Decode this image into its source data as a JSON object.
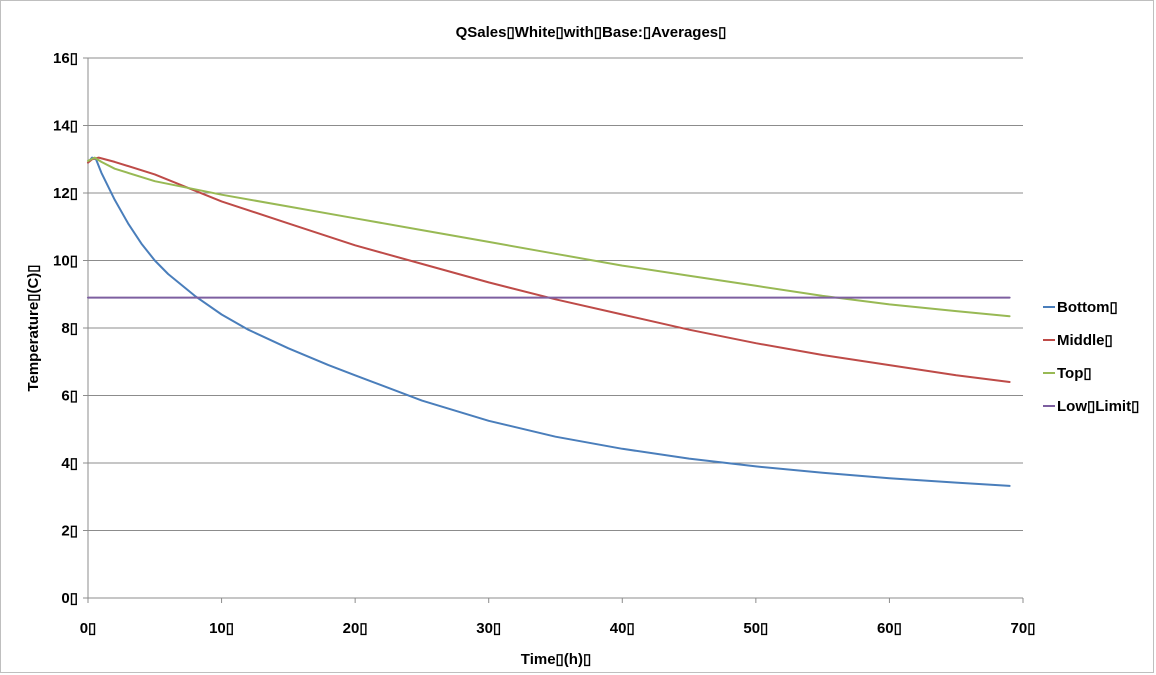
{
  "chart_data": {
    "type": "line",
    "title": "QSales▯White▯with▯Base:▯Averages▯",
    "xlabel": "Time▯(h)▯",
    "ylabel": "Temperature▯(C)▯",
    "xlim": [
      0,
      70
    ],
    "ylim": [
      0,
      16
    ],
    "x_ticks": [
      0,
      10,
      20,
      30,
      40,
      50,
      60,
      70
    ],
    "x_tick_labels": [
      "0▯",
      "10▯",
      "20▯",
      "30▯",
      "40▯",
      "50▯",
      "60▯",
      "70▯"
    ],
    "y_ticks": [
      0,
      2,
      4,
      6,
      8,
      10,
      12,
      14,
      16
    ],
    "y_tick_labels": [
      "0▯",
      "2▯",
      "4▯",
      "6▯",
      "8▯",
      "10▯",
      "12▯",
      "14▯",
      "16▯"
    ],
    "grid": "horizontal",
    "legend_position": "right",
    "series": [
      {
        "name": "Bottom▯",
        "color": "#4a7ebb",
        "points": [
          [
            0,
            12.9
          ],
          [
            0.3,
            13.05
          ],
          [
            0.6,
            13.0
          ],
          [
            1,
            12.6
          ],
          [
            2,
            11.8
          ],
          [
            3,
            11.1
          ],
          [
            4,
            10.5
          ],
          [
            5,
            10.0
          ],
          [
            6,
            9.6
          ],
          [
            8,
            8.95
          ],
          [
            10,
            8.4
          ],
          [
            12,
            7.95
          ],
          [
            15,
            7.4
          ],
          [
            18,
            6.9
          ],
          [
            20,
            6.6
          ],
          [
            25,
            5.85
          ],
          [
            30,
            5.25
          ],
          [
            35,
            4.78
          ],
          [
            40,
            4.42
          ],
          [
            45,
            4.13
          ],
          [
            50,
            3.9
          ],
          [
            55,
            3.71
          ],
          [
            60,
            3.55
          ],
          [
            65,
            3.42
          ],
          [
            69,
            3.32
          ]
        ]
      },
      {
        "name": "Middle▯",
        "color": "#be4b48",
        "points": [
          [
            0,
            12.9
          ],
          [
            0.3,
            13.0
          ],
          [
            0.8,
            13.05
          ],
          [
            2,
            12.92
          ],
          [
            5,
            12.55
          ],
          [
            10,
            11.75
          ],
          [
            15,
            11.1
          ],
          [
            20,
            10.45
          ],
          [
            25,
            9.9
          ],
          [
            30,
            9.35
          ],
          [
            35,
            8.85
          ],
          [
            40,
            8.4
          ],
          [
            45,
            7.95
          ],
          [
            50,
            7.55
          ],
          [
            55,
            7.2
          ],
          [
            60,
            6.9
          ],
          [
            65,
            6.6
          ],
          [
            69,
            6.4
          ]
        ]
      },
      {
        "name": "Top▯",
        "color": "#98b954",
        "points": [
          [
            0,
            12.95
          ],
          [
            0.5,
            13.05
          ],
          [
            1,
            12.92
          ],
          [
            2,
            12.72
          ],
          [
            5,
            12.35
          ],
          [
            10,
            11.95
          ],
          [
            15,
            11.6
          ],
          [
            20,
            11.25
          ],
          [
            25,
            10.9
          ],
          [
            30,
            10.55
          ],
          [
            35,
            10.2
          ],
          [
            40,
            9.85
          ],
          [
            45,
            9.55
          ],
          [
            50,
            9.25
          ],
          [
            55,
            8.95
          ],
          [
            60,
            8.7
          ],
          [
            65,
            8.5
          ],
          [
            69,
            8.35
          ]
        ]
      },
      {
        "name": "Low▯Limit▯",
        "color": "#7d5fa0",
        "points": [
          [
            0,
            8.9
          ],
          [
            69,
            8.9
          ]
        ]
      }
    ]
  }
}
